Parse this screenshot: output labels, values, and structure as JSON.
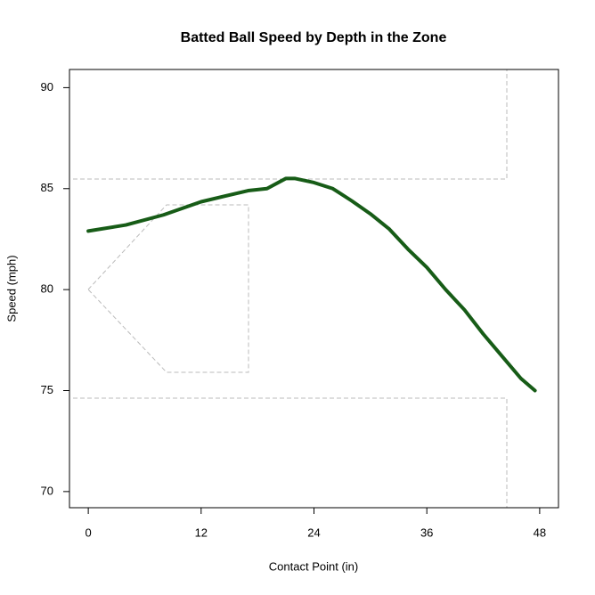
{
  "chart_data": {
    "type": "line",
    "title": "Batted Ball Speed by Depth in the Zone",
    "xlabel": "Contact Point (in)",
    "ylabel": "Speed (mph)",
    "x": [
      0,
      4,
      8,
      12,
      17,
      19,
      21,
      22,
      24,
      26,
      28,
      30,
      32,
      34,
      36,
      38,
      40,
      42,
      44,
      46,
      47.5
    ],
    "series": [
      {
        "name": "Speed",
        "color": "#175c17",
        "values": [
          82.9,
          83.2,
          83.7,
          84.35,
          84.9,
          85.0,
          85.5,
          85.5,
          85.3,
          85.0,
          84.4,
          83.75,
          83.0,
          82.0,
          81.1,
          80.0,
          79.0,
          77.8,
          76.7,
          75.6,
          75.0
        ]
      }
    ],
    "xlim": [
      -2,
      50
    ],
    "ylim": [
      69.2,
      90.9
    ],
    "xticks": [
      0,
      12,
      24,
      36,
      48
    ],
    "yticks": [
      70,
      75,
      80,
      85,
      90
    ]
  }
}
